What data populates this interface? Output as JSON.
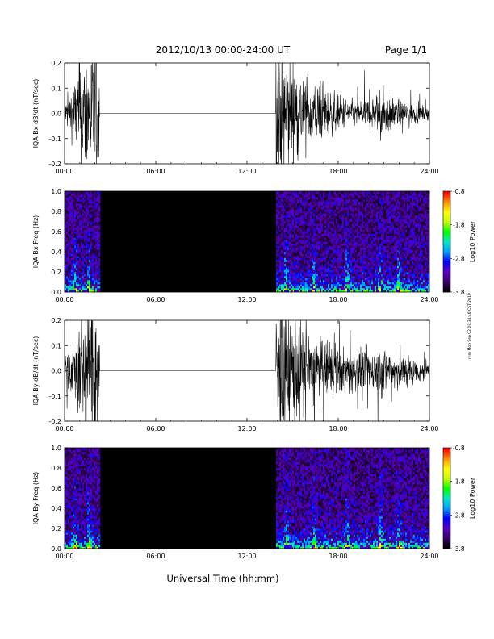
{
  "header": {
    "title": "2012/10/13  00:00-24:00 UT",
    "page": "Page 1/1"
  },
  "side_stamp": "mm Mon Sep 02 09:34:46 CST 2019",
  "xlabel": "Universal Time (hh:mm)",
  "colors": {
    "background": "#ffffff",
    "ink": "#000000",
    "spectrogram_background": "#000000",
    "colormap": [
      "#000000",
      "#3a006a",
      "#5a00c8",
      "#0000ff",
      "#00a0ff",
      "#00e8c8",
      "#00ff00",
      "#c8ff00",
      "#ffff00",
      "#ff9000",
      "#ff0000"
    ]
  },
  "chart_data": [
    {
      "type": "line",
      "ylabel": "IQA Bx dB/dt (nT/sec)",
      "xlim": [
        0,
        24
      ],
      "ylim": [
        -0.2,
        0.2
      ],
      "xticks": [
        "00:00",
        "06:00",
        "12:00",
        "18:00",
        "24:00"
      ],
      "yticks": [
        "-0.2",
        "-0.1",
        "0.0",
        "0.1",
        "0.2"
      ],
      "data_gap": [
        2.3,
        13.9
      ],
      "envelope": {
        "t": [
          0.0,
          0.5,
          1.0,
          1.5,
          2.0,
          2.3,
          13.9,
          14.5,
          15.0,
          16.0,
          17.0,
          18.0,
          19.0,
          20.0,
          21.0,
          22.0,
          23.0,
          24.0
        ],
        "amplitude": [
          0.04,
          0.1,
          0.2,
          0.25,
          0.25,
          0.25,
          0.25,
          0.25,
          0.2,
          0.15,
          0.1,
          0.07,
          0.05,
          0.06,
          0.09,
          0.05,
          0.04,
          0.02
        ]
      }
    },
    {
      "type": "heatmap",
      "ylabel": "IQA Bx Freq (Hz)",
      "xlim": [
        0,
        24
      ],
      "ylim": [
        0,
        1
      ],
      "xticks": [
        "00:00",
        "06:00",
        "12:00",
        "18:00",
        "24:00"
      ],
      "yticks": [
        "0.0",
        "0.2",
        "0.4",
        "0.6",
        "0.8",
        "1.0"
      ],
      "data_gap": [
        2.3,
        13.9
      ],
      "colorbar": {
        "label": "Log10 Power",
        "range": [
          -3.8,
          -0.8
        ],
        "ticks": [
          "-0.8",
          "-1.8",
          "-2.8",
          "-3.8"
        ]
      },
      "bursts": [
        0.7,
        1.6,
        14.6,
        16.4,
        18.6,
        20.8,
        22.0
      ]
    },
    {
      "type": "line",
      "ylabel": "IQA By dB/dt (nT/sec)",
      "xlim": [
        0,
        24
      ],
      "ylim": [
        -0.2,
        0.2
      ],
      "xticks": [
        "00:00",
        "06:00",
        "12:00",
        "18:00",
        "24:00"
      ],
      "yticks": [
        "-0.2",
        "-0.1",
        "0.0",
        "0.1",
        "0.2"
      ],
      "data_gap": [
        2.3,
        13.9
      ],
      "envelope": {
        "t": [
          0.0,
          0.5,
          1.0,
          1.5,
          2.0,
          2.3,
          13.9,
          14.5,
          15.0,
          16.0,
          17.0,
          18.0,
          19.0,
          20.0,
          21.0,
          22.0,
          23.0,
          24.0
        ],
        "amplitude": [
          0.06,
          0.1,
          0.2,
          0.25,
          0.25,
          0.25,
          0.25,
          0.25,
          0.22,
          0.16,
          0.12,
          0.09,
          0.08,
          0.08,
          0.1,
          0.08,
          0.05,
          0.04
        ]
      }
    },
    {
      "type": "heatmap",
      "ylabel": "IQA By Freq (Hz)",
      "xlim": [
        0,
        24
      ],
      "ylim": [
        0,
        1
      ],
      "xticks": [
        "00:00",
        "06:00",
        "12:00",
        "18:00",
        "24:00"
      ],
      "yticks": [
        "0.0",
        "0.2",
        "0.4",
        "0.6",
        "0.8",
        "1.0"
      ],
      "data_gap": [
        2.3,
        13.9
      ],
      "colorbar": {
        "label": "Log10 Power",
        "range": [
          -3.8,
          -0.8
        ],
        "ticks": [
          "-0.8",
          "-1.8",
          "-2.8",
          "-3.8"
        ]
      },
      "bursts": [
        0.7,
        1.6,
        14.6,
        16.4,
        18.6,
        20.8,
        22.0
      ]
    }
  ]
}
